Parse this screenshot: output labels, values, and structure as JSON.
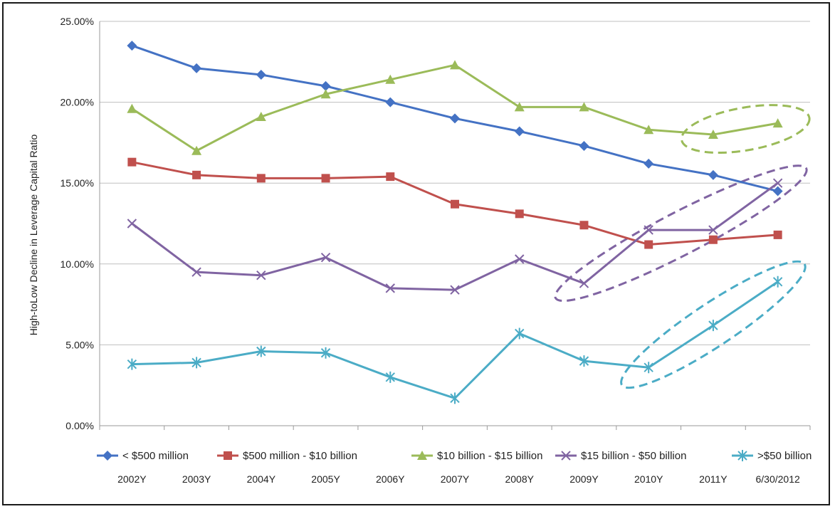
{
  "chart_data": {
    "type": "line",
    "title": "",
    "xlabel": "",
    "ylabel": "High-toLow Decline in Leverage Capital Ratio",
    "ylim": [
      0,
      25
    ],
    "y_ticks": [
      "0.00%",
      "5.00%",
      "10.00%",
      "15.00%",
      "20.00%",
      "25.00%"
    ],
    "y_tick_values": [
      0,
      5,
      10,
      15,
      20,
      25
    ],
    "grid": true,
    "legend_position": "bottom",
    "categories": [
      "2002Y",
      "2003Y",
      "2004Y",
      "2005Y",
      "2006Y",
      "2007Y",
      "2008Y",
      "2009Y",
      "2010Y",
      "2011Y",
      "6/30/2012"
    ],
    "series": [
      {
        "name": "< $500 million",
        "color": "#4472c4",
        "marker": "diamond",
        "values": [
          23.5,
          22.1,
          21.7,
          21.0,
          20.0,
          19.0,
          18.2,
          17.3,
          16.2,
          15.5,
          14.5
        ]
      },
      {
        "name": "$500 million - $10 billion",
        "color": "#c0504d",
        "marker": "square",
        "values": [
          16.3,
          15.5,
          15.3,
          15.3,
          15.4,
          13.7,
          13.1,
          12.4,
          11.2,
          11.5,
          11.8
        ]
      },
      {
        "name": "$10 billion - $15 billion",
        "color": "#9bbb59",
        "marker": "triangle",
        "values": [
          19.6,
          17.0,
          19.1,
          20.5,
          21.4,
          22.3,
          19.7,
          19.7,
          18.3,
          18.0,
          18.7
        ]
      },
      {
        "name": "$15 billion - $50 billion",
        "color": "#8064a2",
        "marker": "x",
        "values": [
          12.5,
          9.5,
          9.3,
          10.4,
          8.5,
          8.4,
          10.3,
          8.8,
          12.1,
          12.1,
          15.0
        ]
      },
      {
        "name": ">$50 billion",
        "color": "#4bacc6",
        "marker": "star",
        "values": [
          3.8,
          3.9,
          4.6,
          4.5,
          3.0,
          1.7,
          5.7,
          4.0,
          3.6,
          6.2,
          8.9
        ]
      }
    ],
    "annotations": [
      {
        "shape": "dashed-ellipse",
        "series": "$10 billion - $15 billion",
        "from": "2011Y",
        "to": "6/30/2012",
        "color": "#9bbb59"
      },
      {
        "shape": "dashed-ellipse",
        "series": "$15 billion - $50 billion",
        "from": "2009Y",
        "to": "6/30/2012",
        "color": "#8064a2"
      },
      {
        "shape": "dashed-ellipse",
        "series": ">$50 billion",
        "from": "2010Y",
        "to": "6/30/2012",
        "color": "#4bacc6"
      }
    ]
  }
}
